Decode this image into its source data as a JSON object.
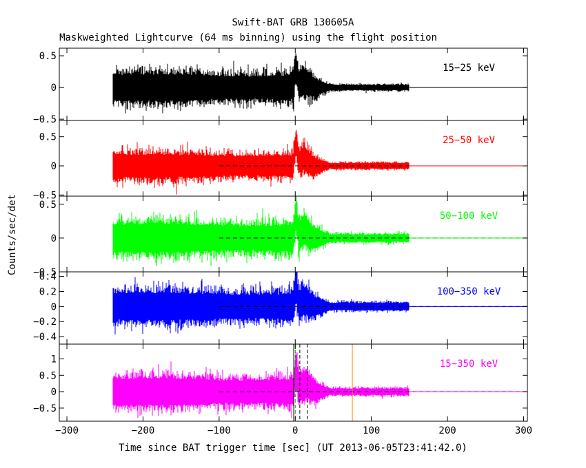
{
  "chart_data": {
    "type": "line",
    "title": "Swift-BAT GRB 130605A",
    "subtitle": "Maskweighted Lightcurve (64 ms binning) using the flight position",
    "xlabel": "Time since BAT trigger time [sec] (UT 2013-06-05T23:41:42.0)",
    "ylabel": "Counts/sec/det",
    "xlim": [
      -310,
      305
    ],
    "xticks": [
      -300,
      -200,
      -100,
      0,
      100,
      200,
      300
    ],
    "xtick_labels": [
      "−300",
      "−200",
      "−100",
      "0",
      "100",
      "200",
      "300"
    ],
    "data_range": [
      -240,
      150
    ],
    "grid": false,
    "panels": [
      {
        "band": "15−25 keV",
        "color": "#000000",
        "ylim": [
          -0.52,
          0.62
        ],
        "yticks": [
          -0.5,
          0,
          0.5
        ],
        "ytick_labels": [
          "−0.5",
          "0",
          "0.5"
        ],
        "noise_amplitude": 0.17,
        "late_amplitude": 0.035,
        "peak": 0.52,
        "zero_line_start": 150,
        "zero_line_style": "solid"
      },
      {
        "band": "25−50 keV",
        "color": "#ff0000",
        "ylim": [
          -0.52,
          0.78
        ],
        "yticks": [
          -0.5,
          0,
          0.5
        ],
        "ytick_labels": [
          "−0.5",
          "0",
          "0.5"
        ],
        "noise_amplitude": 0.16,
        "late_amplitude": 0.04,
        "peak": 0.68,
        "zero_line_start": -100,
        "zero_line_style": "dashed"
      },
      {
        "band": "50−100 keV",
        "color": "#00ff00",
        "ylim": [
          -0.5,
          0.62
        ],
        "yticks": [
          -0.5,
          0,
          0.5
        ],
        "ytick_labels": [
          "−0.5",
          "0",
          "0.5"
        ],
        "noise_amplitude": 0.17,
        "late_amplitude": 0.045,
        "peak": 0.55,
        "zero_line_start": -100,
        "zero_line_style": "dashed"
      },
      {
        "band": "100−350 keV",
        "color": "#0000ff",
        "ylim": [
          -0.5,
          0.46
        ],
        "yticks": [
          -0.4,
          -0.2,
          0,
          0.2,
          0.4
        ],
        "ytick_labels": [
          "−0.4",
          "−0.2",
          "0",
          "0.2",
          "0.4"
        ],
        "noise_amplitude": 0.15,
        "late_amplitude": 0.04,
        "peak": 0.4,
        "zero_line_start": -100,
        "zero_line_style": "dashed"
      },
      {
        "band": "15−350 keV",
        "color": "#ff00ff",
        "ylim": [
          -0.9,
          1.45
        ],
        "yticks": [
          -0.5,
          0,
          0.5,
          1
        ],
        "ytick_labels": [
          "−0.5",
          "0",
          "0.5",
          "1"
        ],
        "noise_amplitude": 0.33,
        "late_amplitude": 0.08,
        "peak": 1.2,
        "zero_line_start": -100,
        "zero_line_style": "dashed",
        "markers": [
          {
            "x": -2,
            "color": "#000000",
            "style": "solid"
          },
          {
            "x": 0,
            "color": "#00aa00",
            "style": "dashed"
          },
          {
            "x": 6,
            "color": "#000000",
            "style": "dashed"
          },
          {
            "x": 16,
            "color": "#000000",
            "style": "dashed"
          },
          {
            "x": 75,
            "color": "#ff8800",
            "style": "solid"
          }
        ]
      }
    ]
  }
}
